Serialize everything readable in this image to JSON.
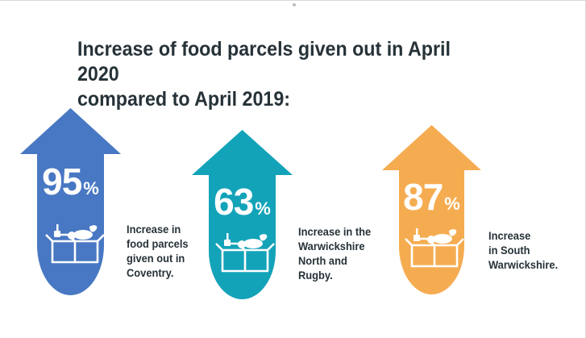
{
  "title": {
    "line1": "Increase of food parcels given out in April 2020",
    "line2": "compared to April 2019:"
  },
  "items": [
    {
      "value": "95",
      "unit": "%",
      "caption": [
        "Increase in",
        "food parcels",
        "given out in",
        "Coventry."
      ],
      "color": "#4878c3"
    },
    {
      "value": "63",
      "unit": "%",
      "caption": [
        "Increase in the",
        "Warwickshire",
        "North and",
        "Rugby."
      ],
      "color": "#13a3b9"
    },
    {
      "value": "87",
      "unit": "%",
      "caption": [
        "Increase",
        "in South",
        "Warwickshire."
      ],
      "color": "#f5ac51"
    }
  ],
  "icons": [
    "food-box-icon"
  ]
}
